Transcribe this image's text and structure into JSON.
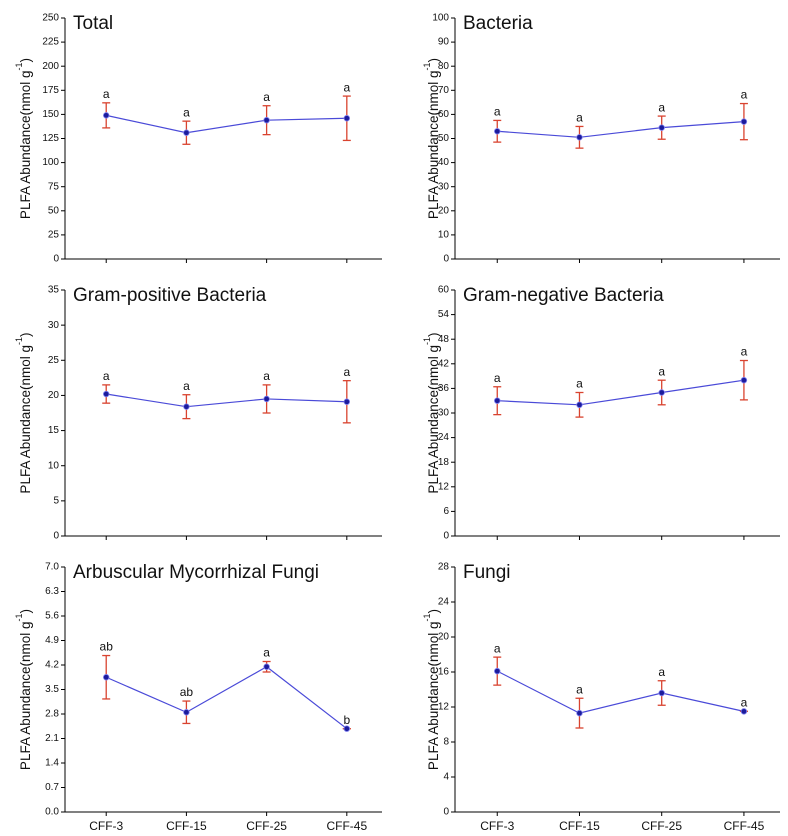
{
  "chart_data": [
    {
      "type": "line",
      "title": "Total",
      "ylabel": "PLFA Abundance(nmol g",
      "ylabel_sup": "-1",
      "ylabel_end": ")",
      "values": [
        149,
        131,
        144,
        146
      ],
      "errors": [
        13,
        12,
        15,
        23
      ],
      "annotations": [
        "a",
        "a",
        "a",
        "a"
      ],
      "color": "#4a4ad8",
      "marker_color": "#1c1c9c",
      "error_color": "#d9432f",
      "ylim": [
        0,
        250
      ],
      "yticks": [
        0,
        25,
        50,
        75,
        100,
        125,
        150,
        175,
        200,
        225,
        250
      ]
    },
    {
      "type": "line",
      "title": "Bacteria",
      "ylabel": "PLFA Abundance(nmol g",
      "ylabel_sup": "-1",
      "ylabel_end": ")",
      "values": [
        53,
        50.5,
        54.5,
        57
      ],
      "errors": [
        4.5,
        4.5,
        4.8,
        7.5
      ],
      "annotations": [
        "a",
        "a",
        "a",
        "a"
      ],
      "color": "#4a4ad8",
      "marker_color": "#1c1c9c",
      "error_color": "#d9432f",
      "ylim": [
        0,
        100
      ],
      "yticks": [
        0,
        10,
        20,
        30,
        40,
        50,
        60,
        70,
        80,
        90,
        100
      ]
    },
    {
      "type": "line",
      "title": "Gram-positive Bacteria",
      "ylabel": "PLFA Abundance(nmol g",
      "ylabel_sup": "-1",
      "ylabel_end": ")",
      "values": [
        20.2,
        18.4,
        19.5,
        19.1
      ],
      "errors": [
        1.3,
        1.7,
        2,
        3
      ],
      "annotations": [
        "a",
        "a",
        "a",
        "a"
      ],
      "color": "#4a4ad8",
      "marker_color": "#1c1c9c",
      "error_color": "#d9432f",
      "ylim": [
        0,
        35
      ],
      "yticks": [
        0,
        5,
        10,
        15,
        20,
        25,
        30,
        35
      ]
    },
    {
      "type": "line",
      "title": "Gram-negative Bacteria",
      "ylabel": "PLFA Abundance(nmol g",
      "ylabel_sup": "-1",
      "ylabel_end": ")",
      "values": [
        33,
        32,
        35,
        38
      ],
      "errors": [
        3.4,
        3,
        3,
        4.8
      ],
      "annotations": [
        "a",
        "a",
        "a",
        "a"
      ],
      "color": "#4a4ad8",
      "marker_color": "#1c1c9c",
      "error_color": "#d9432f",
      "ylim": [
        0,
        60
      ],
      "yticks": [
        0,
        6,
        12,
        18,
        24,
        30,
        36,
        42,
        48,
        54,
        60
      ]
    },
    {
      "type": "line",
      "title": "Arbuscular Mycorrhizal Fungi",
      "ylabel": "PLFA Abundance(nmol g",
      "ylabel_sup": "-1",
      "ylabel_end": ")",
      "categories": [
        "CFF-3",
        "CFF-15",
        "CFF-25",
        "CFF-45"
      ],
      "values": [
        3.85,
        2.85,
        4.15,
        2.38
      ],
      "errors": [
        0.62,
        0.32,
        0.15,
        0
      ],
      "annotations": [
        "ab",
        "ab",
        "a",
        "b"
      ],
      "color": "#4a4ad8",
      "marker_color": "#1c1c9c",
      "error_color": "#d9432f",
      "ylim": [
        0,
        7
      ],
      "yticks": [
        {
          "value": 0,
          "label": "0.0"
        },
        0.7,
        1.4,
        2.1,
        2.8,
        3.5,
        4.2,
        4.9,
        5.6,
        6.3,
        {
          "value": 7,
          "label": "7.0"
        }
      ]
    },
    {
      "type": "line",
      "title": "Fungi",
      "ylabel": "PLFA Abundance(nmol g",
      "ylabel_sup": "-1",
      "ylabel_end": ")",
      "categories": [
        "CFF-3",
        "CFF-15",
        "CFF-25",
        "CFF-45"
      ],
      "values": [
        16.1,
        11.3,
        13.6,
        11.5
      ],
      "errors": [
        1.6,
        1.7,
        1.4,
        0
      ],
      "annotations": [
        "a",
        "a",
        "a",
        "a"
      ],
      "color": "#4a4ad8",
      "marker_color": "#1c1c9c",
      "error_color": "#d9432f",
      "ylim": [
        0,
        28
      ],
      "yticks": [
        0,
        4,
        8,
        12,
        16,
        20,
        24,
        28
      ]
    }
  ]
}
